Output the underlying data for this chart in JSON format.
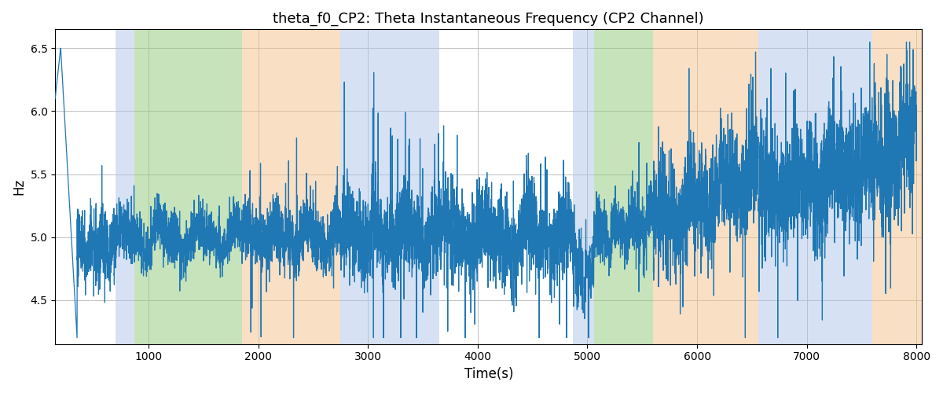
{
  "title": "theta_f0_CP2: Theta Instantaneous Frequency (CP2 Channel)",
  "xlabel": "Time(s)",
  "ylabel": "Hz",
  "xlim": [
    150,
    8050
  ],
  "ylim": [
    4.15,
    6.65
  ],
  "yticks": [
    4.5,
    5.0,
    5.5,
    6.0,
    6.5
  ],
  "xticks": [
    1000,
    2000,
    3000,
    4000,
    5000,
    6000,
    7000,
    8000
  ],
  "line_color": "#1f77b4",
  "line_width": 0.9,
  "bg_color": "white",
  "grid_color": "#c0c0c0",
  "bands": [
    {
      "xmin": 700,
      "xmax": 870,
      "color": "#aec6e8",
      "alpha": 0.5
    },
    {
      "xmin": 870,
      "xmax": 1850,
      "color": "#90c878",
      "alpha": 0.5
    },
    {
      "xmin": 1850,
      "xmax": 2750,
      "color": "#f5c08a",
      "alpha": 0.5
    },
    {
      "xmin": 2750,
      "xmax": 3650,
      "color": "#aec6e8",
      "alpha": 0.5
    },
    {
      "xmin": 4870,
      "xmax": 5060,
      "color": "#aec6e8",
      "alpha": 0.5
    },
    {
      "xmin": 5060,
      "xmax": 5600,
      "color": "#90c878",
      "alpha": 0.5
    },
    {
      "xmin": 5600,
      "xmax": 6560,
      "color": "#f5c08a",
      "alpha": 0.5
    },
    {
      "xmin": 6560,
      "xmax": 7600,
      "color": "#aec6e8",
      "alpha": 0.5
    },
    {
      "xmin": 7600,
      "xmax": 8100,
      "color": "#f5c08a",
      "alpha": 0.5
    }
  ],
  "figsize": [
    12.0,
    5.0
  ],
  "dpi": 100
}
